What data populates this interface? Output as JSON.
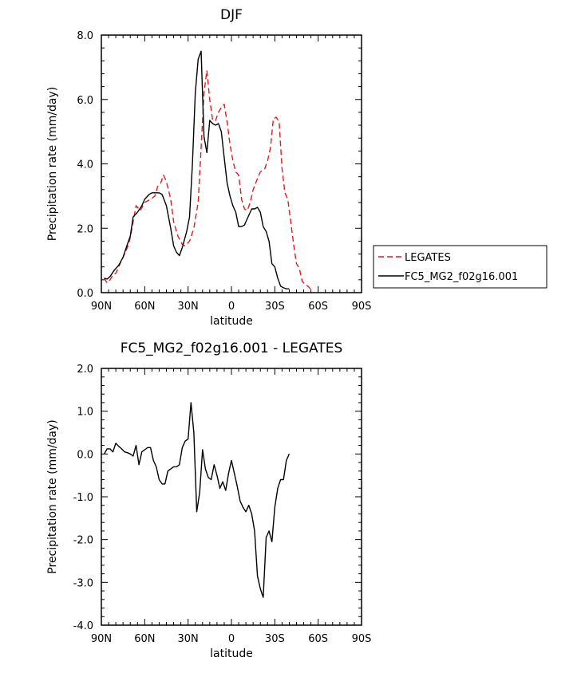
{
  "chart_data": [
    {
      "type": "line",
      "title": "DJF",
      "xlabel": "latitude",
      "ylabel": "Precipitation rate (mm/day)",
      "xlim": [
        -90,
        90
      ],
      "ylim": [
        0,
        8
      ],
      "x_ticks": [
        {
          "value": -90,
          "label": "90N"
        },
        {
          "value": -60,
          "label": "60N"
        },
        {
          "value": -30,
          "label": "30N"
        },
        {
          "value": 0,
          "label": "0"
        },
        {
          "value": 30,
          "label": "30S"
        },
        {
          "value": 60,
          "label": "60S"
        },
        {
          "value": 90,
          "label": "90S"
        }
      ],
      "y_ticks": [
        {
          "value": 0,
          "label": "0.0"
        },
        {
          "value": 2,
          "label": "2.0"
        },
        {
          "value": 4,
          "label": "4.0"
        },
        {
          "value": 6,
          "label": "6.0"
        },
        {
          "value": 8,
          "label": "8.0"
        }
      ],
      "legend_position": "right",
      "series": [
        {
          "name": "LEGATES",
          "color": "#e41a1c",
          "dash": "dashed",
          "points": [
            [
              -88,
              0.45
            ],
            [
              -86,
              0.3
            ],
            [
              -84,
              0.4
            ],
            [
              -82,
              0.55
            ],
            [
              -80,
              0.6
            ],
            [
              -77,
              0.9
            ],
            [
              -75,
              1.1
            ],
            [
              -72,
              1.4
            ],
            [
              -70,
              1.7
            ],
            [
              -68,
              2.2
            ],
            [
              -66,
              2.7
            ],
            [
              -63,
              2.55
            ],
            [
              -60,
              2.8
            ],
            [
              -56,
              2.9
            ],
            [
              -53,
              3.0
            ],
            [
              -51,
              3.3
            ],
            [
              -49,
              3.4
            ],
            [
              -47,
              3.65
            ],
            [
              -45,
              3.45
            ],
            [
              -42,
              2.9
            ],
            [
              -40,
              2.2
            ],
            [
              -37,
              1.75
            ],
            [
              -34,
              1.5
            ],
            [
              -32,
              1.45
            ],
            [
              -29,
              1.6
            ],
            [
              -26,
              2.0
            ],
            [
              -23,
              2.8
            ],
            [
              -21,
              4.5
            ],
            [
              -19,
              6.2
            ],
            [
              -17,
              6.9
            ],
            [
              -15,
              6.0
            ],
            [
              -13,
              5.35
            ],
            [
              -11,
              5.35
            ],
            [
              -9,
              5.6
            ],
            [
              -7,
              5.75
            ],
            [
              -5,
              5.85
            ],
            [
              -3,
              5.3
            ],
            [
              -1,
              4.6
            ],
            [
              1,
              4.1
            ],
            [
              3,
              3.75
            ],
            [
              5,
              3.65
            ],
            [
              7,
              2.9
            ],
            [
              9,
              2.6
            ],
            [
              11,
              2.55
            ],
            [
              13,
              2.8
            ],
            [
              15,
              3.2
            ],
            [
              18,
              3.55
            ],
            [
              20,
              3.75
            ],
            [
              23,
              3.85
            ],
            [
              25,
              4.1
            ],
            [
              27,
              4.5
            ],
            [
              29,
              5.4
            ],
            [
              31,
              5.45
            ],
            [
              33,
              5.3
            ],
            [
              35,
              3.85
            ],
            [
              37,
              3.1
            ],
            [
              39,
              2.9
            ],
            [
              41,
              2.2
            ],
            [
              43,
              1.5
            ],
            [
              45,
              0.9
            ],
            [
              47,
              0.75
            ],
            [
              49,
              0.35
            ],
            [
              51,
              0.25
            ],
            [
              53,
              0.2
            ],
            [
              55,
              0.1
            ]
          ]
        },
        {
          "name": "FC5_MG2_f02g16.001",
          "color": "#000000",
          "dash": "solid",
          "points": [
            [
              -88,
              0.45
            ],
            [
              -86,
              0.42
            ],
            [
              -84,
              0.5
            ],
            [
              -81,
              0.7
            ],
            [
              -78,
              0.85
            ],
            [
              -75,
              1.1
            ],
            [
              -72,
              1.5
            ],
            [
              -70,
              1.75
            ],
            [
              -68,
              2.35
            ],
            [
              -65,
              2.5
            ],
            [
              -62,
              2.7
            ],
            [
              -60,
              2.9
            ],
            [
              -57,
              3.05
            ],
            [
              -55,
              3.1
            ],
            [
              -52,
              3.1
            ],
            [
              -50,
              3.1
            ],
            [
              -48,
              3.05
            ],
            [
              -45,
              2.7
            ],
            [
              -42,
              2.0
            ],
            [
              -40,
              1.45
            ],
            [
              -38,
              1.25
            ],
            [
              -36,
              1.15
            ],
            [
              -34,
              1.4
            ],
            [
              -31,
              1.9
            ],
            [
              -29,
              2.35
            ],
            [
              -27,
              4.0
            ],
            [
              -25,
              6.2
            ],
            [
              -23,
              7.25
            ],
            [
              -21,
              7.5
            ],
            [
              -19,
              4.85
            ],
            [
              -17,
              4.35
            ],
            [
              -15,
              5.35
            ],
            [
              -13,
              5.25
            ],
            [
              -11,
              5.2
            ],
            [
              -9,
              5.25
            ],
            [
              -7,
              5.0
            ],
            [
              -5,
              4.2
            ],
            [
              -3,
              3.4
            ],
            [
              -1,
              3.0
            ],
            [
              1,
              2.7
            ],
            [
              3,
              2.5
            ],
            [
              5,
              2.05
            ],
            [
              7,
              2.05
            ],
            [
              9,
              2.1
            ],
            [
              11,
              2.3
            ],
            [
              14,
              2.6
            ],
            [
              16,
              2.6
            ],
            [
              18,
              2.65
            ],
            [
              20,
              2.5
            ],
            [
              22,
              2.05
            ],
            [
              24,
              1.9
            ],
            [
              26,
              1.6
            ],
            [
              28,
              0.9
            ],
            [
              30,
              0.8
            ],
            [
              32,
              0.45
            ],
            [
              34,
              0.2
            ],
            [
              36,
              0.15
            ],
            [
              38,
              0.12
            ],
            [
              40,
              0.12
            ]
          ]
        }
      ]
    },
    {
      "type": "line",
      "title": "FC5_MG2_f02g16.001 - LEGATES",
      "xlabel": "latitude",
      "ylabel": "Precipitation rate (mm/day)",
      "xlim": [
        -90,
        90
      ],
      "ylim": [
        -4,
        2
      ],
      "x_ticks": [
        {
          "value": -90,
          "label": "90N"
        },
        {
          "value": -60,
          "label": "60N"
        },
        {
          "value": -30,
          "label": "30N"
        },
        {
          "value": 0,
          "label": "0"
        },
        {
          "value": 30,
          "label": "30S"
        },
        {
          "value": 60,
          "label": "60S"
        },
        {
          "value": 90,
          "label": "90S"
        }
      ],
      "y_ticks": [
        {
          "value": -4,
          "label": "-4.0"
        },
        {
          "value": -3,
          "label": "-3.0"
        },
        {
          "value": -2,
          "label": "-2.0"
        },
        {
          "value": -1,
          "label": "-1.0"
        },
        {
          "value": 0,
          "label": "0.0"
        },
        {
          "value": 1,
          "label": "1.0"
        },
        {
          "value": 2,
          "label": "2.0"
        }
      ],
      "series": [
        {
          "name": "",
          "color": "#000000",
          "dash": "solid",
          "points": [
            [
              -88,
              0.0
            ],
            [
              -86,
              0.12
            ],
            [
              -84,
              0.12
            ],
            [
              -82,
              0.05
            ],
            [
              -80,
              0.25
            ],
            [
              -78,
              0.18
            ],
            [
              -76,
              0.12
            ],
            [
              -74,
              0.05
            ],
            [
              -72,
              0.03
            ],
            [
              -70,
              0.0
            ],
            [
              -68,
              -0.05
            ],
            [
              -66,
              0.2
            ],
            [
              -64,
              -0.25
            ],
            [
              -62,
              0.05
            ],
            [
              -60,
              0.1
            ],
            [
              -58,
              0.15
            ],
            [
              -56,
              0.15
            ],
            [
              -54,
              -0.15
            ],
            [
              -52,
              -0.3
            ],
            [
              -50,
              -0.6
            ],
            [
              -48,
              -0.7
            ],
            [
              -46,
              -0.7
            ],
            [
              -44,
              -0.4
            ],
            [
              -42,
              -0.35
            ],
            [
              -40,
              -0.3
            ],
            [
              -38,
              -0.3
            ],
            [
              -36,
              -0.25
            ],
            [
              -34,
              0.15
            ],
            [
              -32,
              0.3
            ],
            [
              -30,
              0.35
            ],
            [
              -28,
              1.2
            ],
            [
              -26,
              0.5
            ],
            [
              -24,
              -1.35
            ],
            [
              -22,
              -0.9
            ],
            [
              -20,
              0.1
            ],
            [
              -18,
              -0.35
            ],
            [
              -16,
              -0.55
            ],
            [
              -14,
              -0.6
            ],
            [
              -12,
              -0.25
            ],
            [
              -10,
              -0.5
            ],
            [
              -8,
              -0.8
            ],
            [
              -6,
              -0.65
            ],
            [
              -4,
              -0.85
            ],
            [
              -2,
              -0.45
            ],
            [
              0,
              -0.15
            ],
            [
              2,
              -0.45
            ],
            [
              4,
              -0.75
            ],
            [
              6,
              -1.1
            ],
            [
              8,
              -1.25
            ],
            [
              10,
              -1.35
            ],
            [
              12,
              -1.2
            ],
            [
              14,
              -1.4
            ],
            [
              16,
              -1.8
            ],
            [
              18,
              -2.85
            ],
            [
              20,
              -3.15
            ],
            [
              22,
              -3.35
            ],
            [
              24,
              -1.95
            ],
            [
              26,
              -1.8
            ],
            [
              28,
              -2.05
            ],
            [
              30,
              -1.25
            ],
            [
              32,
              -0.8
            ],
            [
              34,
              -0.6
            ],
            [
              36,
              -0.6
            ],
            [
              38,
              -0.15
            ],
            [
              40,
              0.0
            ]
          ]
        }
      ]
    }
  ]
}
